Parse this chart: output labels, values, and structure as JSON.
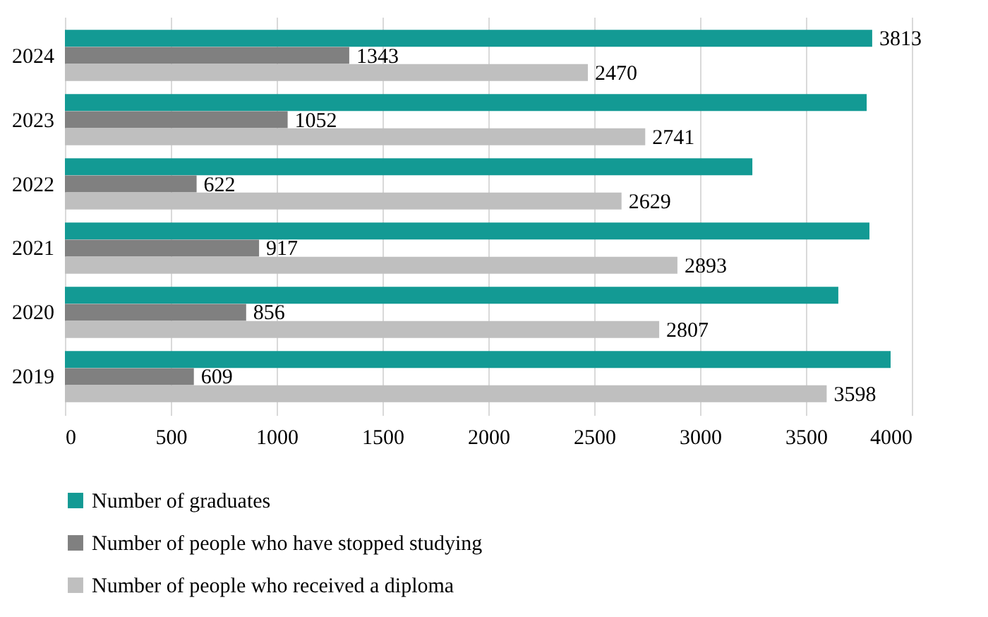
{
  "chart_data": {
    "type": "bar",
    "orientation": "horizontal",
    "categories": [
      "2024",
      "2023",
      "2022",
      "2021",
      "2020",
      "2019"
    ],
    "series": [
      {
        "name": "Number of graduates",
        "color": "#139a94",
        "values": [
          3813,
          3787,
          3247,
          3800,
          3653,
          3900
        ],
        "value_labels": [
          "3813",
          null,
          null,
          null,
          null,
          null
        ]
      },
      {
        "name": "Number of people who have stopped studying",
        "color": "#808080",
        "values": [
          1343,
          1052,
          622,
          917,
          856,
          609
        ],
        "value_labels": [
          "1343",
          "1052",
          "622",
          "917",
          "856",
          "609"
        ]
      },
      {
        "name": "Number of people who received a diploma",
        "color": "#bfbfbf",
        "values": [
          2470,
          2741,
          2629,
          2893,
          2807,
          3598
        ],
        "value_labels": [
          "2470",
          "2741",
          "2629",
          "2893",
          "2807",
          "3598"
        ]
      }
    ],
    "xlim": [
      0,
      4000
    ],
    "xticks": [
      0,
      500,
      1000,
      1500,
      2000,
      2500,
      3000,
      3500,
      4000
    ],
    "grid": "x",
    "legend": "bottom"
  }
}
